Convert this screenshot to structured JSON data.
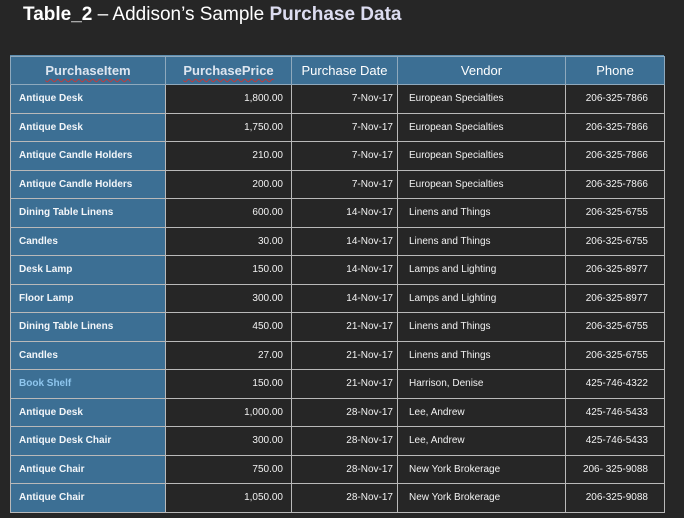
{
  "title": {
    "prefix": "Table_2",
    "separator": " – Addison’s Sample ",
    "suffix": "Purchase Data"
  },
  "table": {
    "headers": [
      "PurchaseItem",
      "PurchasePrice",
      "Purchase Date",
      "Vendor",
      "Phone"
    ],
    "rows": [
      {
        "item": "Antique Desk",
        "price": "1,800.00",
        "date": "7-Nov-17",
        "vendor": "European Specialties",
        "phone": "206-325-7866"
      },
      {
        "item": "Antique Desk",
        "price": "1,750.00",
        "date": "7-Nov-17",
        "vendor": "European Specialties",
        "phone": "206-325-7866"
      },
      {
        "item": "Antique Candle Holders",
        "price": "210.00",
        "date": "7-Nov-17",
        "vendor": "European Specialties",
        "phone": "206-325-7866"
      },
      {
        "item": "Antique Candle Holders",
        "price": "200.00",
        "date": "7-Nov-17",
        "vendor": "European Specialties",
        "phone": "206-325-7866"
      },
      {
        "item": "Dining Table Linens",
        "price": "600.00",
        "date": "14-Nov-17",
        "vendor": "Linens and Things",
        "phone": "206-325-6755"
      },
      {
        "item": "Candles",
        "price": "30.00",
        "date": "14-Nov-17",
        "vendor": "Linens and Things",
        "phone": "206-325-6755"
      },
      {
        "item": "Desk Lamp",
        "price": "150.00",
        "date": "14-Nov-17",
        "vendor": "Lamps and Lighting",
        "phone": "206-325-8977"
      },
      {
        "item": "Floor Lamp",
        "price": "300.00",
        "date": "14-Nov-17",
        "vendor": "Lamps and Lighting",
        "phone": "206-325-8977"
      },
      {
        "item": "Dining Table Linens",
        "price": "450.00",
        "date": "21-Nov-17",
        "vendor": "Linens and Things",
        "phone": "206-325-6755"
      },
      {
        "item": "Candles",
        "price": "27.00",
        "date": "21-Nov-17",
        "vendor": "Linens and Things",
        "phone": "206-325-6755"
      },
      {
        "item": "Book Shelf",
        "price": "150.00",
        "date": "21-Nov-17",
        "vendor": "Harrison, Denise",
        "phone": "425-746-4322"
      },
      {
        "item": "Antique Desk",
        "price": "1,000.00",
        "date": "28-Nov-17",
        "vendor": "Lee, Andrew",
        "phone": "425-746-5433"
      },
      {
        "item": "Antique Desk Chair",
        "price": "300.00",
        "date": "28-Nov-17",
        "vendor": "Lee, Andrew",
        "phone": "425-746-5433"
      },
      {
        "item": "Antique Chair",
        "price": "750.00",
        "date": "28-Nov-17",
        "vendor": "New York Brokerage",
        "phone": "206- 325-9088"
      },
      {
        "item": "Antique Chair",
        "price": "1,050.00",
        "date": "28-Nov-17",
        "vendor": "New York Brokerage",
        "phone": "206-325-9088"
      }
    ]
  },
  "colors": {
    "background": "#262626",
    "header_blue": "#3c6f94",
    "link_blue": "#8fc6ee",
    "spellcheck_red": "#c23a3a"
  }
}
